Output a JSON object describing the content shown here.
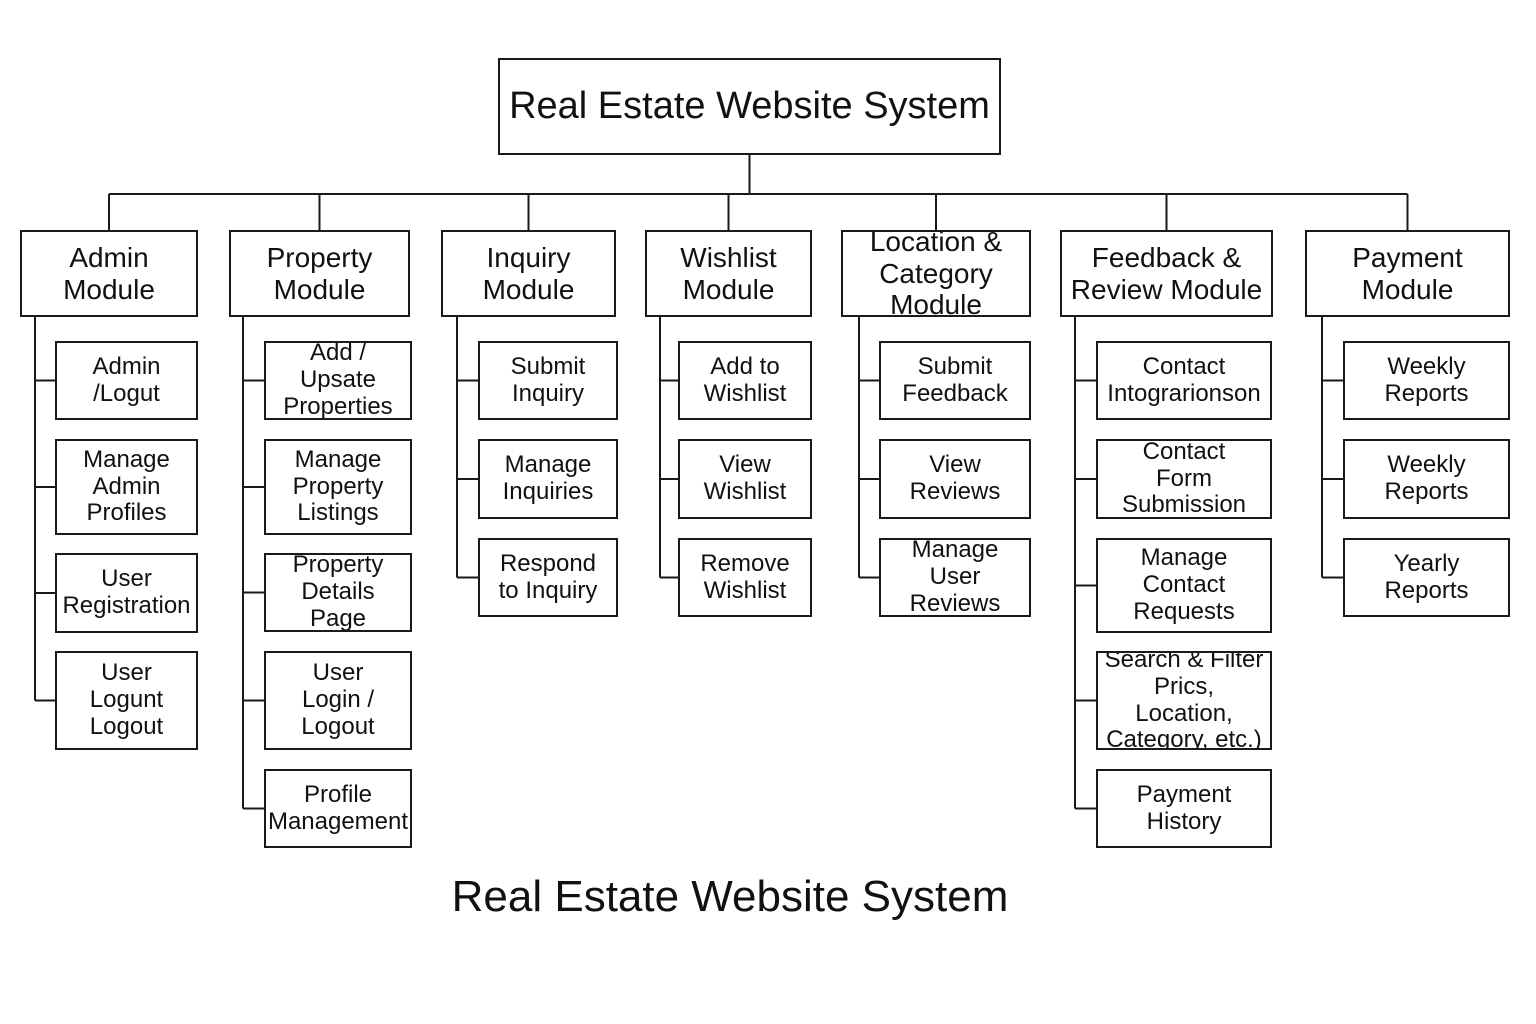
{
  "title": "Real Estate Website System",
  "caption": "Real Estate Website System",
  "modules": [
    {
      "label": "Admin\nModule",
      "children": [
        "Admin\n/Logut",
        "Manage\nAdmin\nProfiles",
        "User\nRegistration",
        "User\nLogunt\nLogout"
      ]
    },
    {
      "label": "Property\nModule",
      "children": [
        "Add / Upsate\nProperties",
        "Manage\nProperty\nListings",
        "Property\nDetails Page",
        "User\nLogin /\nLogout",
        "Profile\nManagement"
      ]
    },
    {
      "label": "Inquiry\nModule",
      "children": [
        "Submit\nInquiry",
        "Manage\nInquiries",
        "Respond\nto Inquiry"
      ]
    },
    {
      "label": "Wishlist\nModule",
      "children": [
        "Add to\nWishlist",
        "View\nWishlist",
        "Remove\nWishlist"
      ]
    },
    {
      "label": "Location &\nCategory Module",
      "children": [
        "Submit\nFeedback",
        "View\nReviews",
        "Manage\nUser Reviews"
      ]
    },
    {
      "label": "Feedback &\nReview Module",
      "children": [
        "Contact\nIntograrionson",
        "Contact\nForm Submission",
        "Manage\nContact\nRequests",
        "Search & Filter\nPrics, Location,\nCategory, etc.)",
        "Payment\nHistory"
      ]
    },
    {
      "label": "Payment\nModule",
      "children": [
        "Weekly\nReports",
        "Weekly\nReports",
        "Yearly\nReports"
      ]
    }
  ]
}
